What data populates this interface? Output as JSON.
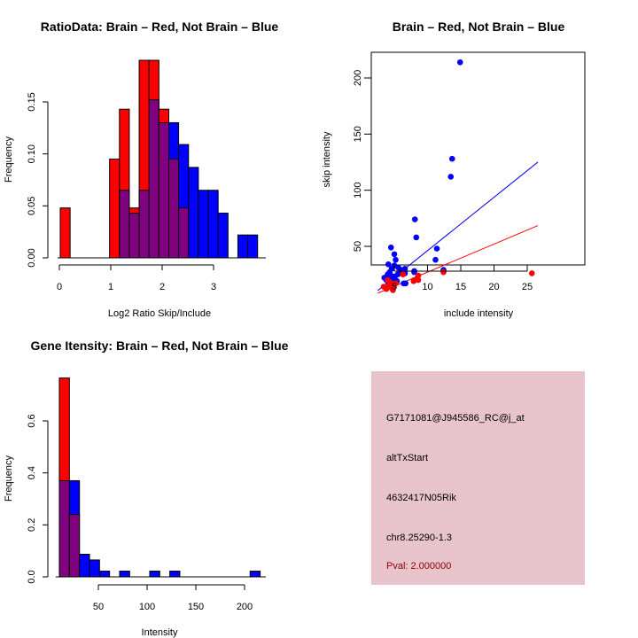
{
  "colors": {
    "brain": "#ff0000",
    "not_brain": "#0000ff",
    "overlap": "#800080",
    "info_bg": "#e8c4cc",
    "pval_text": "#8b0000"
  },
  "chart_data": [
    {
      "id": "ratio-hist",
      "type": "bar",
      "title": "RatioData: Brain – Red, Not Brain – Blue",
      "xlabel": "Log2 Ratio Skip/Include",
      "ylabel": "Frequency",
      "xlim": [
        0,
        3.9
      ],
      "ylim": [
        0,
        0.19
      ],
      "xticks": [
        0,
        1,
        2,
        3
      ],
      "xtick_labels": [
        "0",
        "1",
        "2",
        "3"
      ],
      "yticks": [
        0.0,
        0.05,
        0.1,
        0.15
      ],
      "ytick_labels": [
        "0.00",
        "0.05",
        "0.10",
        "0.15"
      ],
      "bin_start": 0.017,
      "bin_width": 0.192,
      "series": [
        {
          "name": "Brain",
          "color": "#ff0000",
          "values": [
            0.048,
            0,
            0,
            0,
            0,
            0.095,
            0.143,
            0.048,
            0.19,
            0.19,
            0.143,
            0.095,
            0.048,
            0,
            0,
            0,
            0,
            0,
            0,
            0
          ]
        },
        {
          "name": "Not Brain",
          "color": "#0000ff",
          "values": [
            0,
            0,
            0,
            0,
            0,
            0,
            0.065,
            0.043,
            0.065,
            0.152,
            0.13,
            0.13,
            0.109,
            0.087,
            0.065,
            0.065,
            0.043,
            0,
            0.022,
            0.022
          ]
        }
      ]
    },
    {
      "id": "scatter",
      "type": "scatter",
      "title": "Brain – Red, Not Brain – Blue",
      "xlabel": "include intensity",
      "ylabel": "skip intensity",
      "xlim": [
        2.5,
        26.6
      ],
      "ylim": [
        4,
        222
      ],
      "xticks": [
        5,
        10,
        15,
        20,
        25
      ],
      "xtick_labels": [
        "5",
        "10",
        "15",
        "20",
        "25"
      ],
      "yticks": [
        50,
        100,
        150,
        200
      ],
      "ytick_labels": [
        "50",
        "100",
        "150",
        "200"
      ],
      "series": [
        {
          "name": "Brain",
          "color": "#ff0000",
          "points": [
            [
              3.4,
              14
            ],
            [
              3.8,
              12
            ],
            [
              4.2,
              15
            ],
            [
              4.6,
              13
            ],
            [
              4.8,
              11
            ],
            [
              5.0,
              16
            ],
            [
              4.4,
              18
            ],
            [
              6.3,
              25
            ],
            [
              7.9,
              19
            ],
            [
              8.0,
              20
            ],
            [
              8.6,
              24
            ],
            [
              8.6,
              20
            ],
            [
              8.5,
              22
            ],
            [
              12.4,
              27
            ],
            [
              25.7,
              26
            ],
            [
              4.0,
              20
            ],
            [
              5.2,
              17
            ]
          ],
          "fit": {
            "intercept": 2.0,
            "slope": 2.5
          }
        },
        {
          "name": "Not Brain",
          "color": "#0000ff",
          "points": [
            [
              3.5,
              22
            ],
            [
              3.8,
              20
            ],
            [
              4.0,
              25
            ],
            [
              4.1,
              18
            ],
            [
              4.2,
              22
            ],
            [
              4.3,
              16
            ],
            [
              4.4,
              20
            ],
            [
              4.5,
              24
            ],
            [
              4.6,
              19
            ],
            [
              4.7,
              15
            ],
            [
              4.8,
              21
            ],
            [
              4.9,
              18
            ],
            [
              5.0,
              23
            ],
            [
              5.2,
              20
            ],
            [
              5.4,
              19
            ],
            [
              4.3,
              27
            ],
            [
              4.5,
              49
            ],
            [
              4.1,
              34
            ],
            [
              4.6,
              30
            ],
            [
              5.0,
              43
            ],
            [
              5.0,
              33
            ],
            [
              5.2,
              38
            ],
            [
              5.6,
              31
            ],
            [
              5.5,
              25
            ],
            [
              6.0,
              29
            ],
            [
              6.0,
              26
            ],
            [
              6.5,
              28
            ],
            [
              6.6,
              30
            ],
            [
              6.4,
              17
            ],
            [
              6.7,
              17
            ],
            [
              6.6,
              26
            ],
            [
              8.0,
              28
            ],
            [
              8.0,
              27
            ],
            [
              8.1,
              74
            ],
            [
              8.3,
              58
            ],
            [
              11.2,
              38
            ],
            [
              11.4,
              48
            ],
            [
              12.4,
              29
            ],
            [
              13.5,
              112
            ],
            [
              13.7,
              128
            ],
            [
              14.9,
              214
            ],
            [
              4.8,
              14
            ],
            [
              3.9,
              13
            ]
          ],
          "fit": {
            "intercept": -1.3,
            "slope": 4.75
          }
        }
      ]
    },
    {
      "id": "intensity-hist",
      "type": "bar",
      "title": "Gene Itensity: Brain – Red, Not Brain – Blue",
      "xlabel": "Intensity",
      "ylabel": "Frequency",
      "xlim": [
        8,
        220
      ],
      "ylim": [
        0,
        0.77
      ],
      "xticks": [
        50,
        100,
        150,
        200
      ],
      "xtick_labels": [
        "50",
        "100",
        "150",
        "200"
      ],
      "yticks": [
        0.0,
        0.2,
        0.4,
        0.6
      ],
      "ytick_labels": [
        "0.0",
        "0.2",
        "0.4",
        "0.6"
      ],
      "bin_start": 10,
      "bin_width": 10.3,
      "series": [
        {
          "name": "Brain",
          "color": "#ff0000",
          "values": [
            0.765,
            0.24,
            0,
            0,
            0,
            0,
            0,
            0,
            0,
            0,
            0,
            0,
            0,
            0,
            0,
            0,
            0,
            0,
            0,
            0
          ]
        },
        {
          "name": "Not Brain",
          "color": "#0000ff",
          "values": [
            0.37,
            0.37,
            0.087,
            0.065,
            0.022,
            0,
            0.022,
            0,
            0,
            0.022,
            0,
            0.022,
            0,
            0,
            0,
            0,
            0,
            0,
            0,
            0.022
          ]
        }
      ]
    }
  ],
  "info_panel": {
    "probe_id": "G7171081@J945586_RC@j_at",
    "event_type": "altTxStart",
    "gene": "4632417N05Rik",
    "location": "chr8.25290-1.3",
    "pval": "Pval: 2.000000"
  }
}
